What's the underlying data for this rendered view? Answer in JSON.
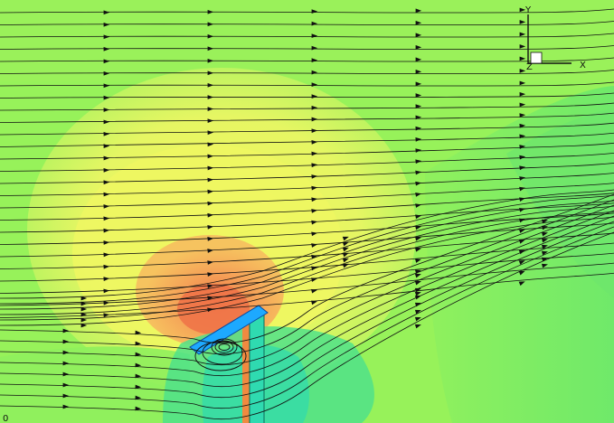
{
  "figure": {
    "kind": "CFD flow-field contour plot with streamlines",
    "colors": {
      "background_field": "#97f25a",
      "high_region_yellow": "#ecf662",
      "high_region_orange": "#f5b45e",
      "peak_region_red": "#f0784a",
      "low_region_green": "#4fe07c",
      "low_region_cyan": "#3ee2a6",
      "streamline": "#111111",
      "plate": "#1da9ff"
    }
  },
  "axes_triad": {
    "y_label": "Y",
    "x_label": "X",
    "z_label": "Z"
  },
  "corner_mark": "0"
}
